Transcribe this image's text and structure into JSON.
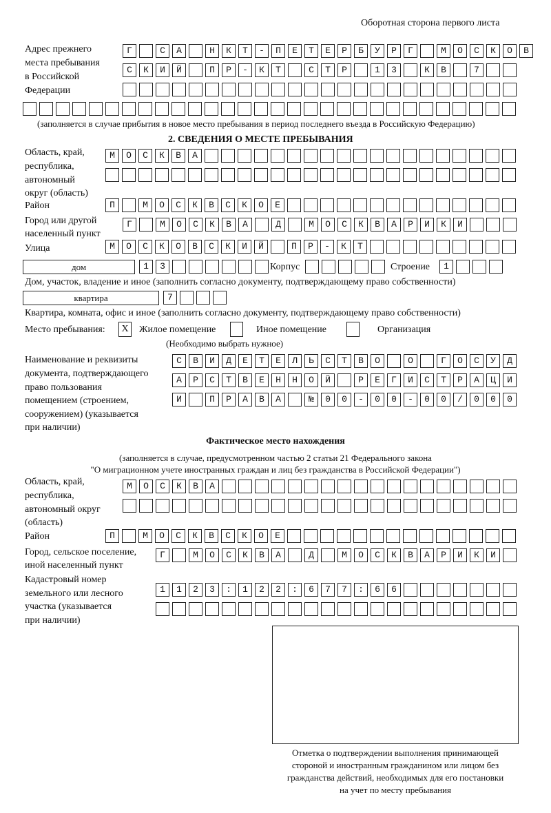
{
  "header": {
    "side_note": "Оборотная сторона первого листа"
  },
  "previous_address": {
    "label": [
      "Адрес прежнего",
      "места пребывания",
      "в Российской",
      "Федерации"
    ],
    "rows": [
      "Г СА НКТ-ПЕТЕРБУРГ МОСКОВ",
      "СКИЙ ПР-КТ СТР 13 КВ 7  ",
      "                        ",
      "                              "
    ],
    "note": "(заполняется в случае прибытия в новое место пребывания в период последнего въезда в Российскую Федерацию)"
  },
  "section2": {
    "title": "2. СВЕДЕНИЯ О МЕСТЕ ПРЕБЫВАНИЯ",
    "region_label": [
      "Область, край,",
      "республика,",
      "автономный",
      "округ (область)"
    ],
    "region_rows": [
      "МОСКВА                   ",
      "                         "
    ],
    "district_label": "Район",
    "district_row": "П МОСКВСКОЕ              ",
    "city_label": [
      "Город или другой",
      "населенный пункт"
    ],
    "city_row": "Г МОСКВА Д МОСКВАРИКИ   ",
    "street_label": "Улица",
    "street_row": "МОСКОВСКИЙ ПР-КТ         ",
    "house_type": "дом",
    "house_cells": "13      ",
    "korpus_label": "Корпус",
    "korpus_cells": "     ",
    "building_label": "Строение",
    "building_cells": "1   ",
    "house_note": "Дом, участок, владение и иное (заполнить согласно документу, подтверждающему право собственности)",
    "flat_type": "квартира",
    "flat_cells": "7   ",
    "flat_note": "Квартира, комната, офис и иное (заполнить согласно документу, подтверждающему право собственности)",
    "stay_label": "Место пребывания:",
    "stay_options": [
      {
        "label": "Жилое помещение",
        "mark": "X"
      },
      {
        "label": "Иное помещение",
        "mark": ""
      },
      {
        "label": "Организация",
        "mark": ""
      }
    ],
    "stay_note": "(Необходимо выбрать нужное)",
    "doc_label": [
      "Наименование и реквизиты",
      "документа, подтверждающего",
      "право пользования",
      "помещением (строением,",
      "сооружением) (указывается",
      "при наличии)"
    ],
    "doc_rows": [
      "СВИДЕТЕЛЬСТВО О ГОСУД",
      "АРСТВЕННОЙ РЕГИСТРАЦИ",
      "И ПРАВА №00-00-00/000"
    ]
  },
  "actual": {
    "title": "Фактическое место нахождения",
    "note": [
      "(заполняется в случае, предусмотренном частью 2 статьи 21 Федерального закона",
      "\"О миграционном учете иностранных граждан и лиц без гражданства в Российской Федерации\")"
    ],
    "region_label": [
      "Область, край,",
      "республика,",
      "автономный округ",
      "(область)"
    ],
    "region_rows": [
      "МОСКВА                  ",
      "                        "
    ],
    "district_label": "Район",
    "district_row": "П МОСКВСКОЕ              ",
    "city_label": [
      "Город, сельское поселение,",
      "иной населенный пункт"
    ],
    "city_row": "Г МОСКВА Д МОСКВАРИКИ ",
    "cadastral_label": [
      "Кадастровый номер",
      "земельного или лесного",
      "участка (указывается",
      "при наличии)"
    ],
    "cadastral_rows": [
      "1123:122:677:66       ",
      "                      "
    ]
  },
  "stamp": {
    "caption": [
      "Отметка о подтверждении выполнения принимающей",
      "стороной и иностранным гражданином или лицом без",
      "гражданства действий, необходимых для его постановки",
      "на учет по месту пребывания"
    ]
  }
}
